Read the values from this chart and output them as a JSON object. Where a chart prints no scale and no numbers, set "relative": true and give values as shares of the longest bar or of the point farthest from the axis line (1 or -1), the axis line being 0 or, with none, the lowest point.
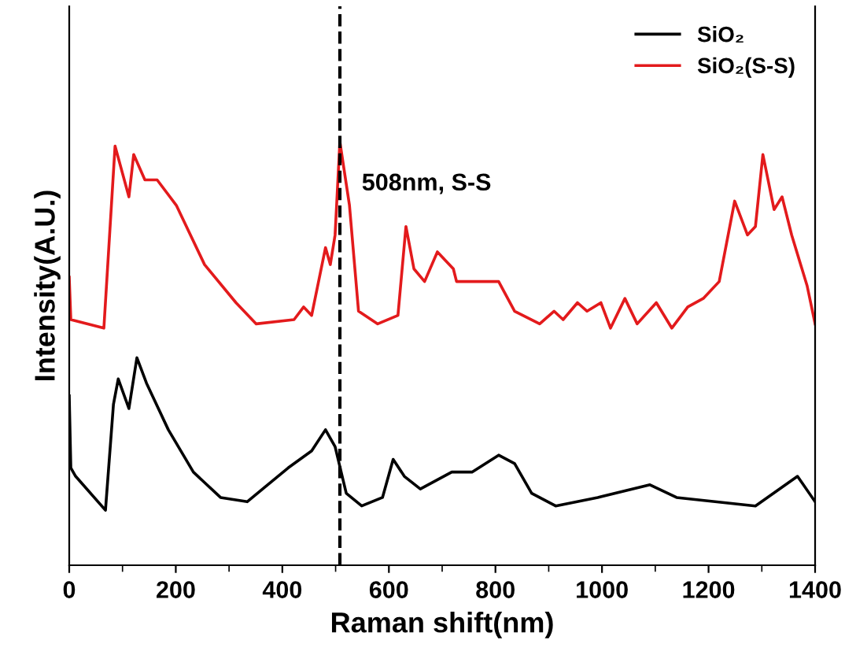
{
  "chart_data": {
    "type": "line",
    "relative": true,
    "xlabel": "Raman shift(nm)",
    "ylabel": "Intensity(A.U.)",
    "xlim": [
      0,
      1400
    ],
    "xticks": [
      0,
      200,
      400,
      600,
      800,
      1000,
      1200,
      1400
    ],
    "grid": false,
    "legend": "top right",
    "line_style": "solid",
    "marker": "none",
    "tick_labels": "x",
    "series": [
      {
        "name": "SiO₂",
        "color": "#000000",
        "x": [
          0,
          3,
          12,
          68,
          83,
          92,
          112,
          127,
          145,
          186,
          233,
          284,
          334,
          363,
          411,
          455,
          481,
          499,
          520,
          549,
          588,
          608,
          629,
          659,
          718,
          756,
          806,
          836,
          868,
          913,
          992,
          1090,
          1140,
          1288,
          1367,
          1400
        ],
        "values": [
          0.4,
          0.23,
          0.21,
          0.13,
          0.38,
          0.44,
          0.37,
          0.49,
          0.43,
          0.32,
          0.22,
          0.16,
          0.15,
          0.18,
          0.23,
          0.27,
          0.32,
          0.28,
          0.17,
          0.14,
          0.16,
          0.25,
          0.21,
          0.18,
          0.22,
          0.22,
          0.26,
          0.24,
          0.17,
          0.14,
          0.16,
          0.19,
          0.16,
          0.14,
          0.21,
          0.15
        ]
      },
      {
        "name": "SiO₂(S-S)",
        "color": "#e31a1c",
        "x": [
          0,
          3,
          65,
          86,
          112,
          121,
          142,
          165,
          201,
          254,
          313,
          351,
          422,
          440,
          455,
          481,
          490,
          499,
          508,
          526,
          543,
          579,
          617,
          632,
          647,
          667,
          691,
          721,
          727,
          806,
          836,
          883,
          910,
          927,
          954,
          972,
          998,
          1016,
          1043,
          1066,
          1102,
          1131,
          1161,
          1190,
          1220,
          1249,
          1273,
          1288,
          1302,
          1323,
          1338,
          1356,
          1385,
          1400
        ],
        "values": [
          0.68,
          0.58,
          0.56,
          0.99,
          0.87,
          0.97,
          0.91,
          0.91,
          0.85,
          0.71,
          0.62,
          0.57,
          0.58,
          0.61,
          0.59,
          0.75,
          0.71,
          0.78,
          1.0,
          0.85,
          0.6,
          0.57,
          0.59,
          0.8,
          0.7,
          0.67,
          0.74,
          0.7,
          0.67,
          0.67,
          0.6,
          0.57,
          0.6,
          0.58,
          0.62,
          0.6,
          0.62,
          0.56,
          0.63,
          0.57,
          0.62,
          0.56,
          0.61,
          0.63,
          0.67,
          0.86,
          0.78,
          0.8,
          0.97,
          0.84,
          0.87,
          0.78,
          0.66,
          0.57
        ]
      }
    ],
    "ref_lines": [
      {
        "axis": "x",
        "value": 508,
        "color": "#000000",
        "line_style": "dashed"
      }
    ],
    "annotations": [
      {
        "text": "508nm, S-S",
        "x": 508,
        "y": 0.9
      }
    ]
  }
}
